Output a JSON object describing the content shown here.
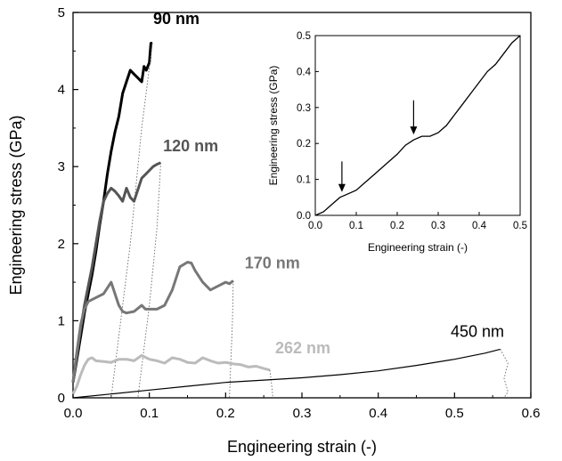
{
  "chart_data": {
    "type": "line",
    "xlabel": "Engineering strain (-)",
    "ylabel": "Engineering stress (GPa)",
    "xlim": [
      0,
      0.6
    ],
    "ylim": [
      0,
      5
    ],
    "xticks": [
      0.0,
      0.1,
      0.2,
      0.3,
      0.4,
      0.5,
      0.6
    ],
    "yticks": [
      0,
      1,
      2,
      3,
      4,
      5
    ],
    "xtick_labels": [
      "0.0",
      "0.1",
      "0.2",
      "0.3",
      "0.4",
      "0.5",
      "0.6"
    ],
    "ytick_labels": [
      "0",
      "1",
      "2",
      "3",
      "4",
      "5"
    ],
    "grid": false,
    "series": [
      {
        "name": "90 nm",
        "color": "#000000",
        "points": [
          [
            0,
            0.2
          ],
          [
            0.005,
            0.5
          ],
          [
            0.01,
            0.8
          ],
          [
            0.015,
            1.1
          ],
          [
            0.02,
            1.35
          ],
          [
            0.025,
            1.6
          ],
          [
            0.03,
            1.9
          ],
          [
            0.035,
            2.25
          ],
          [
            0.04,
            2.55
          ],
          [
            0.045,
            2.9
          ],
          [
            0.05,
            3.2
          ],
          [
            0.055,
            3.45
          ],
          [
            0.06,
            3.65
          ],
          [
            0.065,
            3.95
          ],
          [
            0.07,
            4.1
          ],
          [
            0.075,
            4.25
          ],
          [
            0.08,
            4.2
          ],
          [
            0.085,
            4.15
          ],
          [
            0.09,
            4.1
          ],
          [
            0.093,
            4.3
          ],
          [
            0.096,
            4.25
          ],
          [
            0.1,
            4.35
          ],
          [
            0.102,
            4.6
          ],
          [
            0.104,
            4.6
          ]
        ],
        "unload": [
          [
            0.104,
            4.6
          ],
          [
            0.09,
            3.5
          ],
          [
            0.075,
            2.0
          ],
          [
            0.06,
            0.8
          ],
          [
            0.05,
            0.0
          ]
        ]
      },
      {
        "name": "120 nm",
        "color": "#555555",
        "points": [
          [
            0,
            0.2
          ],
          [
            0.005,
            0.55
          ],
          [
            0.01,
            0.9
          ],
          [
            0.015,
            1.2
          ],
          [
            0.02,
            1.45
          ],
          [
            0.025,
            1.7
          ],
          [
            0.03,
            2.0
          ],
          [
            0.035,
            2.3
          ],
          [
            0.04,
            2.55
          ],
          [
            0.045,
            2.65
          ],
          [
            0.05,
            2.72
          ],
          [
            0.055,
            2.68
          ],
          [
            0.06,
            2.62
          ],
          [
            0.065,
            2.55
          ],
          [
            0.07,
            2.72
          ],
          [
            0.075,
            2.6
          ],
          [
            0.08,
            2.55
          ],
          [
            0.085,
            2.7
          ],
          [
            0.09,
            2.85
          ],
          [
            0.095,
            2.9
          ],
          [
            0.1,
            2.95
          ],
          [
            0.105,
            3.0
          ],
          [
            0.11,
            3.03
          ],
          [
            0.115,
            3.05
          ]
        ],
        "unload": [
          [
            0.115,
            3.05
          ],
          [
            0.11,
            2.2
          ],
          [
            0.1,
            1.2
          ],
          [
            0.09,
            0.4
          ],
          [
            0.085,
            0.0
          ]
        ]
      },
      {
        "name": "170 nm",
        "color": "#777777",
        "points": [
          [
            0,
            0.2
          ],
          [
            0.005,
            0.6
          ],
          [
            0.01,
            0.95
          ],
          [
            0.015,
            1.15
          ],
          [
            0.02,
            1.25
          ],
          [
            0.03,
            1.3
          ],
          [
            0.04,
            1.35
          ],
          [
            0.05,
            1.5
          ],
          [
            0.055,
            1.35
          ],
          [
            0.06,
            1.2
          ],
          [
            0.065,
            1.12
          ],
          [
            0.07,
            1.1
          ],
          [
            0.08,
            1.12
          ],
          [
            0.09,
            1.2
          ],
          [
            0.095,
            1.15
          ],
          [
            0.1,
            1.15
          ],
          [
            0.11,
            1.15
          ],
          [
            0.12,
            1.2
          ],
          [
            0.13,
            1.4
          ],
          [
            0.14,
            1.7
          ],
          [
            0.15,
            1.76
          ],
          [
            0.155,
            1.75
          ],
          [
            0.16,
            1.65
          ],
          [
            0.17,
            1.5
          ],
          [
            0.18,
            1.4
          ],
          [
            0.19,
            1.45
          ],
          [
            0.2,
            1.5
          ],
          [
            0.205,
            1.48
          ],
          [
            0.21,
            1.52
          ]
        ],
        "unload": [
          [
            0.21,
            1.52
          ],
          [
            0.209,
            1.0
          ],
          [
            0.207,
            0.5
          ],
          [
            0.205,
            0.0
          ]
        ]
      },
      {
        "name": "262 nm",
        "color": "#bbbbbb",
        "points": [
          [
            0,
            0.05
          ],
          [
            0.005,
            0.15
          ],
          [
            0.01,
            0.3
          ],
          [
            0.015,
            0.42
          ],
          [
            0.02,
            0.5
          ],
          [
            0.025,
            0.52
          ],
          [
            0.03,
            0.48
          ],
          [
            0.04,
            0.47
          ],
          [
            0.05,
            0.46
          ],
          [
            0.06,
            0.5
          ],
          [
            0.07,
            0.5
          ],
          [
            0.08,
            0.48
          ],
          [
            0.09,
            0.55
          ],
          [
            0.1,
            0.5
          ],
          [
            0.11,
            0.48
          ],
          [
            0.12,
            0.45
          ],
          [
            0.13,
            0.52
          ],
          [
            0.14,
            0.5
          ],
          [
            0.15,
            0.46
          ],
          [
            0.16,
            0.45
          ],
          [
            0.17,
            0.52
          ],
          [
            0.18,
            0.48
          ],
          [
            0.19,
            0.45
          ],
          [
            0.2,
            0.46
          ],
          [
            0.21,
            0.44
          ],
          [
            0.22,
            0.43
          ],
          [
            0.23,
            0.4
          ],
          [
            0.24,
            0.41
          ],
          [
            0.25,
            0.38
          ],
          [
            0.258,
            0.36
          ]
        ],
        "unload": [
          [
            0.258,
            0.36
          ],
          [
            0.26,
            0.2
          ],
          [
            0.262,
            0.0
          ]
        ]
      },
      {
        "name": "450 nm",
        "color": "#000000",
        "points": [
          [
            0,
            0
          ],
          [
            0.05,
            0.05
          ],
          [
            0.1,
            0.1
          ],
          [
            0.15,
            0.15
          ],
          [
            0.2,
            0.2
          ],
          [
            0.25,
            0.23
          ],
          [
            0.3,
            0.26
          ],
          [
            0.35,
            0.3
          ],
          [
            0.4,
            0.35
          ],
          [
            0.45,
            0.42
          ],
          [
            0.5,
            0.5
          ],
          [
            0.54,
            0.58
          ],
          [
            0.56,
            0.63
          ]
        ],
        "unload": [
          [
            0.56,
            0.63
          ],
          [
            0.57,
            0.45
          ],
          [
            0.565,
            0.25
          ],
          [
            0.57,
            0.08
          ],
          [
            0.565,
            0.0
          ]
        ]
      }
    ],
    "inset": {
      "type": "line",
      "xlabel": "Engineering strain (-)",
      "ylabel": "Engineering stress (GPa)",
      "xlim": [
        0,
        0.5
      ],
      "ylim": [
        0,
        0.5
      ],
      "xtick_labels": [
        "0.0",
        "0.1",
        "0.2",
        "0.3",
        "0.4",
        "0.5"
      ],
      "ytick_labels": [
        "0.0",
        "0.1",
        "0.2",
        "0.3",
        "0.4",
        "0.5"
      ],
      "points": [
        [
          0,
          0
        ],
        [
          0.02,
          0.01
        ],
        [
          0.04,
          0.03
        ],
        [
          0.06,
          0.05
        ],
        [
          0.08,
          0.06
        ],
        [
          0.1,
          0.07
        ],
        [
          0.12,
          0.09
        ],
        [
          0.14,
          0.11
        ],
        [
          0.16,
          0.13
        ],
        [
          0.18,
          0.15
        ],
        [
          0.2,
          0.17
        ],
        [
          0.22,
          0.195
        ],
        [
          0.24,
          0.21
        ],
        [
          0.26,
          0.22
        ],
        [
          0.28,
          0.22
        ],
        [
          0.3,
          0.23
        ],
        [
          0.32,
          0.25
        ],
        [
          0.34,
          0.28
        ],
        [
          0.36,
          0.31
        ],
        [
          0.38,
          0.34
        ],
        [
          0.4,
          0.37
        ],
        [
          0.42,
          0.4
        ],
        [
          0.44,
          0.42
        ],
        [
          0.46,
          0.45
        ],
        [
          0.48,
          0.48
        ],
        [
          0.5,
          0.5
        ]
      ],
      "arrows": [
        {
          "x": 0.065,
          "y_from": 0.15,
          "y_to": 0.065
        },
        {
          "x": 0.24,
          "y_from": 0.32,
          "y_to": 0.225
        }
      ]
    }
  }
}
